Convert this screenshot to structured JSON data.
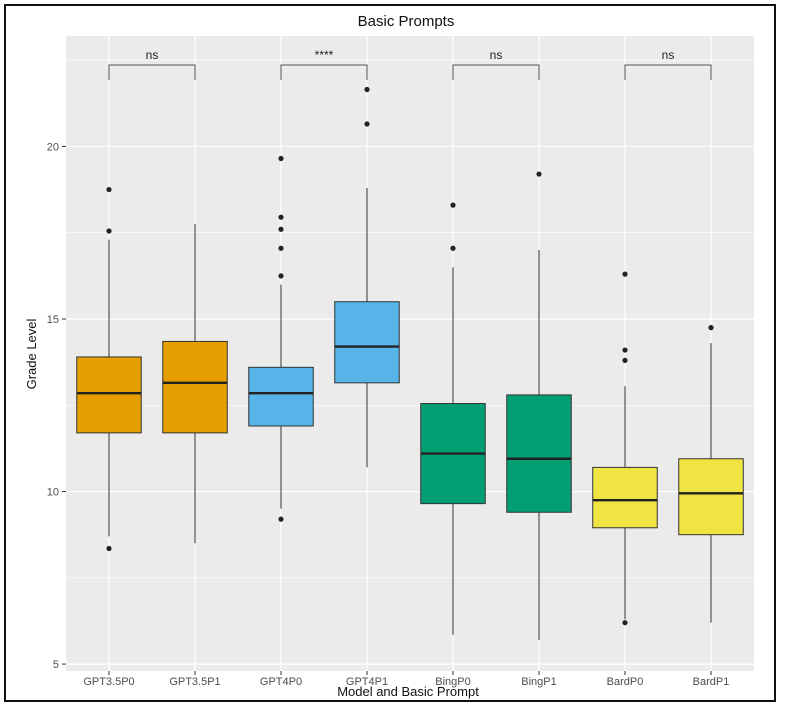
{
  "chart_data": {
    "type": "boxplot",
    "title": "Basic Prompts",
    "xlabel": "Model and Basic Prompt",
    "ylabel": "Grade Level",
    "ylim": [
      4.8,
      23.2
    ],
    "y_ticks": [
      5,
      10,
      15,
      20
    ],
    "grid": true,
    "legend": "none",
    "categories": [
      "GPT3.5P0",
      "GPT3.5P1",
      "GPT4P0",
      "GPT4P1",
      "BingP0",
      "BingP1",
      "BardP0",
      "BardP1"
    ],
    "boxes": [
      {
        "category": "GPT3.5P0",
        "whisker_low": 8.7,
        "q1": 11.7,
        "median": 12.85,
        "q3": 13.9,
        "whisker_high": 17.3,
        "outliers": [
          8.35,
          17.55,
          18.75
        ],
        "color": "#E69F00"
      },
      {
        "category": "GPT3.5P1",
        "whisker_low": 8.5,
        "q1": 11.7,
        "median": 13.15,
        "q3": 14.35,
        "whisker_high": 17.75,
        "outliers": [],
        "color": "#E69F00"
      },
      {
        "category": "GPT4P0",
        "whisker_low": 9.5,
        "q1": 11.9,
        "median": 12.85,
        "q3": 13.6,
        "whisker_high": 16.0,
        "outliers": [
          9.2,
          16.25,
          17.05,
          17.6,
          17.95,
          19.65
        ],
        "color": "#56B4E9"
      },
      {
        "category": "GPT4P1",
        "whisker_low": 10.7,
        "q1": 13.15,
        "median": 14.2,
        "q3": 15.5,
        "whisker_high": 18.8,
        "outliers": [
          20.65,
          21.65
        ],
        "color": "#56B4E9"
      },
      {
        "category": "BingP0",
        "whisker_low": 5.85,
        "q1": 9.65,
        "median": 11.1,
        "q3": 12.55,
        "whisker_high": 16.5,
        "outliers": [
          17.05,
          18.3
        ],
        "color": "#009E73"
      },
      {
        "category": "BingP1",
        "whisker_low": 5.7,
        "q1": 9.4,
        "median": 10.95,
        "q3": 12.8,
        "whisker_high": 17.0,
        "outliers": [
          19.2
        ],
        "color": "#009E73"
      },
      {
        "category": "BardP0",
        "whisker_low": 6.3,
        "q1": 8.95,
        "median": 9.75,
        "q3": 10.7,
        "whisker_high": 13.05,
        "outliers": [
          6.2,
          13.8,
          14.1,
          16.3
        ],
        "color": "#F0E442"
      },
      {
        "category": "BardP1",
        "whisker_low": 6.2,
        "q1": 8.75,
        "median": 9.95,
        "q3": 10.95,
        "whisker_high": 14.3,
        "outliers": [
          14.75
        ],
        "color": "#F0E442"
      }
    ],
    "comparisons": [
      {
        "groups": [
          "GPT3.5P0",
          "GPT3.5P1"
        ],
        "label": "ns"
      },
      {
        "groups": [
          "GPT4P0",
          "GPT4P1"
        ],
        "label": "****"
      },
      {
        "groups": [
          "BingP0",
          "BingP1"
        ],
        "label": "ns"
      },
      {
        "groups": [
          "BardP0",
          "BardP1"
        ],
        "label": "ns"
      }
    ],
    "panel_background": "#EBEBEB",
    "grid_color": "#FFFFFF"
  }
}
